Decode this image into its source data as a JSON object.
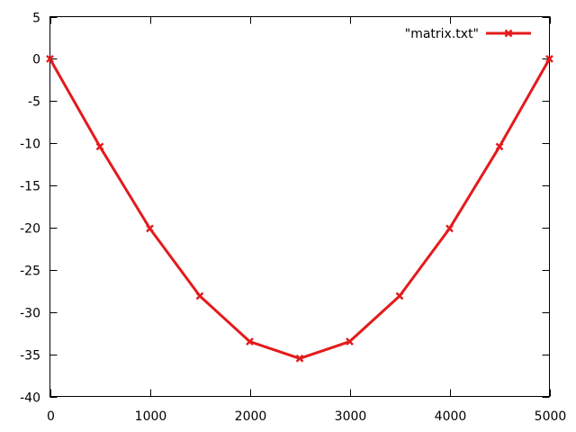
{
  "chart_data": {
    "type": "line",
    "title": "",
    "xlabel": "",
    "ylabel": "",
    "xlim": [
      0,
      5000
    ],
    "ylim": [
      -40,
      5
    ],
    "x_ticks": [
      0,
      1000,
      2000,
      3000,
      4000,
      5000
    ],
    "y_ticks": [
      5,
      0,
      -5,
      -10,
      -15,
      -20,
      -25,
      -30,
      -35,
      -40
    ],
    "grid": false,
    "legend_position": "top-right",
    "series": [
      {
        "name": "\"matrix.txt\"",
        "color": "#e41a1c",
        "marker": "x",
        "points": [
          {
            "x": 0,
            "y": 0
          },
          {
            "x": 500,
            "y": -10.4
          },
          {
            "x": 1000,
            "y": -20.1
          },
          {
            "x": 1500,
            "y": -28.1
          },
          {
            "x": 2000,
            "y": -33.5
          },
          {
            "x": 2500,
            "y": -35.5
          },
          {
            "x": 3000,
            "y": -33.5
          },
          {
            "x": 3500,
            "y": -28.1
          },
          {
            "x": 4000,
            "y": -20.1
          },
          {
            "x": 4500,
            "y": -10.4
          },
          {
            "x": 5000,
            "y": 0
          }
        ]
      }
    ]
  }
}
